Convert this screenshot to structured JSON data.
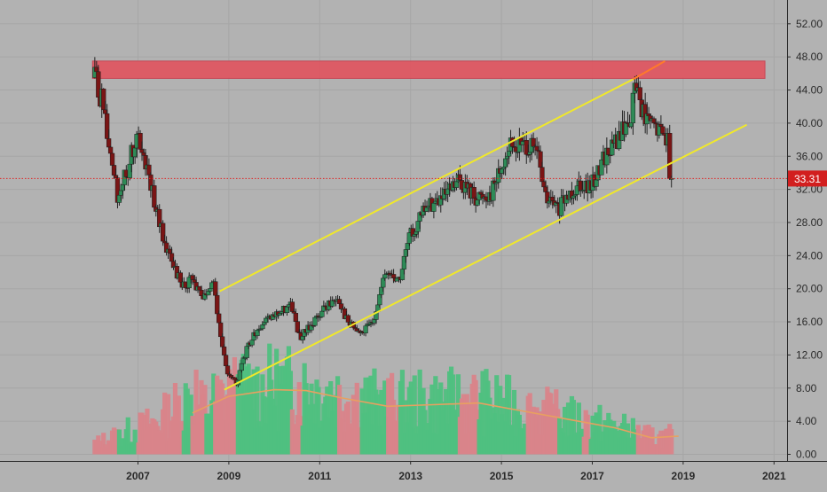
{
  "colors": {
    "background": "#b2b2b2",
    "grid": "#a6a6a6",
    "axis_text": "#2a2a2a",
    "candle_up": "#2e8b57",
    "candle_down": "#7a1515",
    "volume_up": "#4fc07f",
    "volume_down": "#d9848a",
    "volume_ma": "#e8a060",
    "resistance_zone": "#e05560",
    "channel": "#f0e82a",
    "breakout_line": "#ff7a2a",
    "price_line": "#e02020",
    "price_label_bg": "#d21f1f",
    "price_label_text": "#ffffff"
  },
  "chart_data": {
    "type": "candlestick",
    "title": "",
    "xlabel": "",
    "ylabel": "",
    "ylim": [
      -0.6,
      55.5
    ],
    "xlim": [
      2005.0,
      2021.5
    ],
    "y_ticks": [
      "0.00",
      "4.00",
      "8.00",
      "12.00",
      "16.00",
      "20.00",
      "24.00",
      "28.00",
      "32.00",
      "36.00",
      "40.00",
      "44.00",
      "48.00",
      "52.00"
    ],
    "x_ticks": [
      "2007",
      "2009",
      "2011",
      "2013",
      "2015",
      "2017",
      "2019",
      "2021"
    ],
    "grid": true,
    "current_price": "33.31",
    "resistance_zone": {
      "x": [
        2006.0,
        2020.8
      ],
      "y": [
        45.4,
        47.5
      ]
    },
    "channel_upper": {
      "x": [
        2008.8,
        2017.9
      ],
      "y": [
        19.7,
        45.3
      ]
    },
    "channel_lower": {
      "x": [
        2008.9,
        2020.4
      ],
      "y": [
        7.8,
        39.8
      ]
    },
    "breakout_line": {
      "x": [
        2017.9,
        2018.6
      ],
      "y": [
        45.3,
        47.5
      ]
    },
    "price_anchors": {
      "x": [
        2006.0,
        2006.1,
        2006.3,
        2006.45,
        2006.6,
        2006.85,
        2007.0,
        2007.1,
        2007.3,
        2007.5,
        2007.7,
        2008.0,
        2008.2,
        2008.5,
        2008.7,
        2008.85,
        2009.0,
        2009.2,
        2009.45,
        2009.65,
        2010.0,
        2010.4,
        2010.6,
        2010.9,
        2011.2,
        2011.45,
        2011.65,
        2011.95,
        2012.2,
        2012.5,
        2012.8,
        2013.0,
        2013.4,
        2013.8,
        2014.1,
        2014.5,
        2014.8,
        2015.2,
        2015.6,
        2015.85,
        2016.0,
        2016.3,
        2016.6,
        2016.8,
        2017.0,
        2017.3,
        2017.6,
        2017.9,
        2018.0,
        2018.2,
        2018.5,
        2018.7,
        2018.8
      ],
      "y": [
        45.5,
        45.2,
        42.0,
        35.0,
        31.0,
        35.0,
        38.5,
        37.0,
        33.0,
        28.0,
        24.0,
        20.5,
        21.0,
        19.0,
        21.0,
        14.0,
        10.0,
        8.5,
        13.0,
        15.0,
        16.5,
        18.0,
        14.0,
        16.0,
        18.0,
        19.0,
        16.0,
        14.5,
        16.0,
        22.0,
        21.0,
        26.0,
        30.0,
        31.0,
        33.0,
        31.0,
        31.5,
        37.0,
        37.5,
        36.0,
        31.0,
        29.5,
        32.0,
        33.0,
        32.0,
        36.0,
        38.0,
        41.0,
        45.0,
        40.5,
        39.0,
        38.5,
        33.31
      ]
    },
    "volume_ma_anchors": {
      "x": [
        2008.2,
        2009.0,
        2010.0,
        2010.7,
        2011.5,
        2012.5,
        2013.5,
        2014.5,
        2015.3,
        2016.5,
        2017.5,
        2018.3,
        2018.9
      ],
      "y": [
        5.0,
        7.0,
        7.8,
        7.7,
        6.8,
        5.8,
        6.0,
        6.2,
        5.4,
        4.2,
        3.2,
        2.0,
        2.2
      ]
    }
  }
}
